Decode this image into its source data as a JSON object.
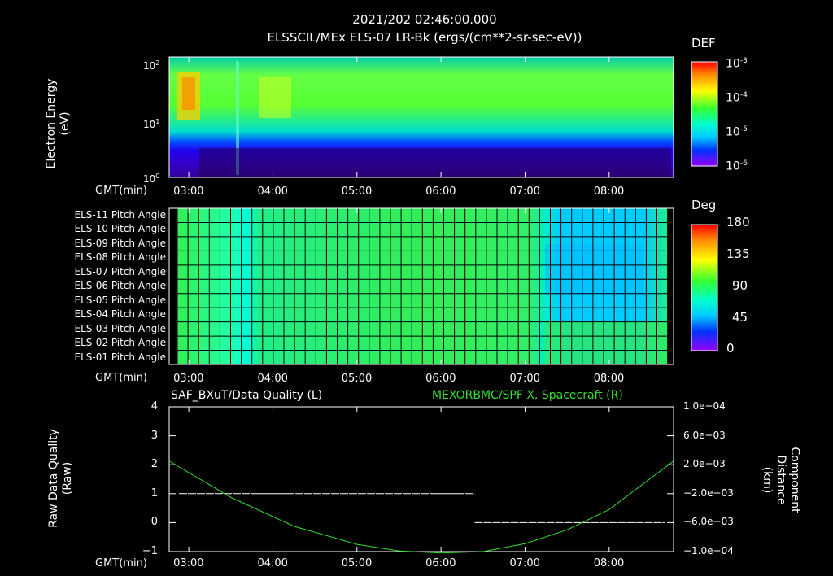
{
  "header": {
    "datetime": "2021/202 02:46:00.000",
    "product": "ELSSCIL/MEx ELS-07 LR-Bk  (ergs/(cm**2-sr-sec-eV))"
  },
  "time_axis": {
    "label": "GMT(min)",
    "ticks": [
      "03:00",
      "04:00",
      "05:00",
      "06:00",
      "07:00",
      "08:00"
    ]
  },
  "spectrogram": {
    "ylabel_line1": "Electron Energy",
    "ylabel_line2": "(eV)",
    "y_ticks": [
      {
        "base": "10",
        "exp": "2"
      },
      {
        "base": "10",
        "exp": "1"
      },
      {
        "base": "10",
        "exp": "0"
      }
    ],
    "colorbar_title": "DEF",
    "colorbar_ticks": [
      {
        "base": "10",
        "exp": "-3"
      },
      {
        "base": "10",
        "exp": "-4"
      },
      {
        "base": "10",
        "exp": "-5"
      },
      {
        "base": "10",
        "exp": "-6"
      }
    ]
  },
  "pitch": {
    "rows": [
      "ELS-11 Pitch Angle",
      "ELS-10 Pitch Angle",
      "ELS-09 Pitch Angle",
      "ELS-08 Pitch Angle",
      "ELS-07 Pitch Angle",
      "ELS-06 Pitch Angle",
      "ELS-05 Pitch Angle",
      "ELS-04 Pitch Angle",
      "ELS-03 Pitch Angle",
      "ELS-02 Pitch Angle",
      "ELS-01 Pitch Angle"
    ],
    "colorbar_title": "Deg",
    "colorbar_ticks": [
      "180",
      "135",
      "90",
      "45",
      "0"
    ]
  },
  "quality": {
    "left_title": "SAF_BXuT/Data Quality (L)",
    "right_title": "MEXORBMC/SPF X, Spacecraft (R)",
    "left_label_line1": "Raw Data Quality",
    "left_label_line2": "(Raw)",
    "right_label_line1": "Component Distance",
    "right_label_line2": "(km)",
    "left_ticks": [
      "4",
      "3",
      "2",
      "1",
      "0",
      "−1"
    ],
    "right_ticks": [
      "1.0e+04",
      "6.0e+03",
      "2.0e+03",
      "−2.0e+03",
      "−6.0e+03",
      "−1.0e+04"
    ]
  },
  "colors": {
    "background": "#000000",
    "spacecraft_line": "#33dd33",
    "quality_line": "#ffffff",
    "right_title": "#33dd33"
  },
  "chart_data": {
    "type": "line",
    "title": "SAF_BXuT/Data Quality (L) / MEXORBMC/SPF X, Spacecraft (R)",
    "xlabel": "GMT(min)",
    "x_minutes_range": [
      "02:46",
      "08:46"
    ],
    "ylim_left": [
      -1,
      4
    ],
    "ylim_right": [
      -10000,
      10000
    ],
    "series": [
      {
        "name": "SAF_BXuT/Data Quality",
        "axis": "left",
        "x": [
          "02:53",
          "06:24",
          "06:24",
          "08:40"
        ],
        "y": [
          1,
          1,
          0,
          0
        ]
      },
      {
        "name": "MEXORBMC/SPF X, Spacecraft",
        "axis": "right",
        "x": [
          "02:46",
          "03:30",
          "04:15",
          "05:00",
          "05:30",
          "06:00",
          "06:30",
          "07:00",
          "07:30",
          "08:00",
          "08:46"
        ],
        "y": [
          2500,
          -2500,
          -6500,
          -9000,
          -9900,
          -10200,
          -10000,
          -8900,
          -7000,
          -4200,
          2500
        ]
      }
    ]
  }
}
